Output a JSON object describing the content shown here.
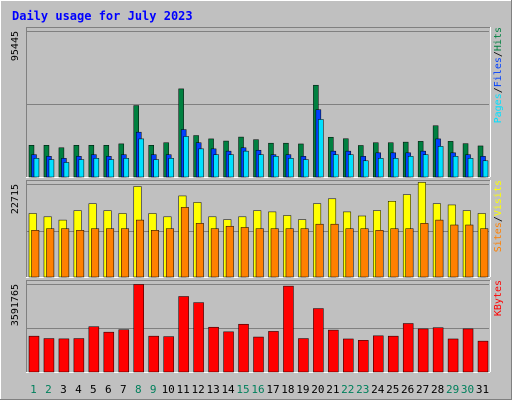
{
  "chart_data": {
    "type": "bar",
    "title": "Daily usage for July 2023",
    "categories": [
      "1",
      "2",
      "3",
      "4",
      "5",
      "6",
      "7",
      "8",
      "9",
      "10",
      "11",
      "12",
      "13",
      "14",
      "15",
      "16",
      "17",
      "18",
      "19",
      "20",
      "21",
      "22",
      "23",
      "24",
      "25",
      "26",
      "27",
      "28",
      "29",
      "30",
      "31"
    ],
    "weekend_days": [
      "1",
      "2",
      "8",
      "9",
      "15",
      "16",
      "22",
      "23",
      "29",
      "30"
    ],
    "grid": true,
    "panels": [
      {
        "name": "hits-files-pages",
        "ymax_label": "95445",
        "ymax": 95445,
        "series": [
          {
            "name": "Hits",
            "color": "#008040",
            "values": [
              20750,
              20750,
              19100,
              20750,
              20750,
              20750,
              21650,
              46700,
              20750,
              22400,
              57600,
              27100,
              24900,
              23500,
              26100,
              24400,
              22100,
              22100,
              21600,
              60000,
              26000,
              25000,
              20600,
              22400,
              22400,
              22800,
              23300,
              33500,
              23300,
              21800,
              20300
            ]
          },
          {
            "name": "Files",
            "color": "#0040ff",
            "values": [
              14600,
              13500,
              12200,
              13500,
              14600,
              13500,
              14600,
              29300,
              14600,
              14600,
              31000,
              22400,
              18400,
              16900,
              19100,
              17500,
              14600,
              14600,
              13500,
              44000,
              16900,
              16900,
              13500,
              15800,
              15800,
              15800,
              16900,
              24900,
              15800,
              14600,
              13500
            ]
          },
          {
            "name": "Pages",
            "color": "#00e0ff",
            "values": [
              12200,
              11400,
              9500,
              11400,
              12200,
              11400,
              12200,
              24900,
              11400,
              12200,
              26500,
              18400,
              14600,
              14600,
              16900,
              14600,
              13500,
              12200,
              11400,
              37600,
              14600,
              14600,
              10600,
              12200,
              12200,
              13500,
              14600,
              20000,
              13500,
              12200,
              10600
            ]
          }
        ]
      },
      {
        "name": "visits-sites",
        "ymax_label": "22715",
        "ymax": 22715,
        "series": [
          {
            "name": "Visits",
            "color": "#ffff00",
            "values": [
              15500,
              14700,
              13900,
              16200,
              17900,
              16200,
              15500,
              22100,
              15500,
              14700,
              19800,
              18200,
              14700,
              14000,
              14700,
              16200,
              15900,
              15000,
              14000,
              17900,
              19100,
              15900,
              14900,
              16200,
              18500,
              20100,
              23100,
              17900,
              17600,
              16200,
              15500
            ]
          },
          {
            "name": "Sites",
            "color": "#ff8000",
            "values": [
              11400,
              11800,
              11800,
              11400,
              11800,
              11800,
              11800,
              13900,
              11400,
              11800,
              17000,
              13100,
              11800,
              12400,
              12100,
              11800,
              11800,
              11800,
              11800,
              12900,
              12900,
              11800,
              11800,
              11400,
              11800,
              11800,
              13100,
              13900,
              12700,
              12700,
              11800
            ]
          }
        ]
      },
      {
        "name": "kbytes",
        "ymax_label": "3591765",
        "ymax": 3591765,
        "series": [
          {
            "name": "KBytes",
            "color": "#ff0000",
            "values": [
              1463000,
              1365000,
              1352000,
              1365000,
              1848000,
              1626000,
              1726000,
              3573000,
              1463000,
              1444000,
              3081000,
              2832000,
              1828000,
              1639000,
              1950000,
              1427000,
              1657000,
              3505000,
              1365000,
              2589000,
              1710000,
              1348000,
              1293000,
              1476000,
              1463000,
              1979000,
              1759000,
              1808000,
              1348000,
              1759000,
              1260000
            ]
          }
        ]
      }
    ]
  }
}
